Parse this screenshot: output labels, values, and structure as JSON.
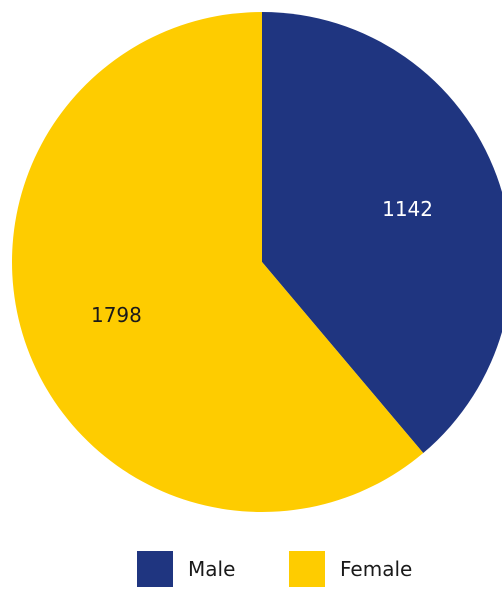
{
  "chart_data": {
    "type": "pie",
    "title": "",
    "categories": [
      "Male",
      "Female"
    ],
    "values": [
      1142,
      1798
    ],
    "colors": [
      "#1f3580",
      "#fecc00"
    ],
    "data_labels": [
      "1142",
      "1798"
    ],
    "data_label_colors": [
      "#ffffff",
      "#1a1a1a"
    ],
    "start_angle_deg": 0,
    "direction": "clockwise",
    "legend": {
      "placement": "bottom",
      "entries": [
        "Male",
        "Female"
      ]
    }
  }
}
